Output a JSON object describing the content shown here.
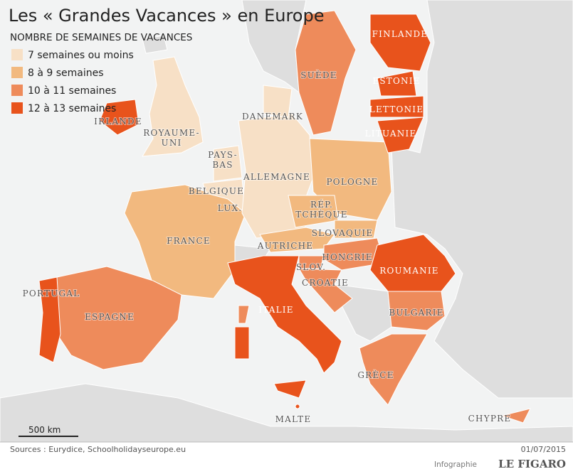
{
  "title": "Les « Grandes Vacances » en Europe",
  "legend": {
    "title": "NOMBRE DE SEMAINES DE VACANCES",
    "items": [
      {
        "label": "7 semaines ou moins",
        "color": "#f7e0c6"
      },
      {
        "label": "8 à  9 semaines",
        "color": "#f2b97f"
      },
      {
        "label": "10 à 11 semaines",
        "color": "#ee8b5b"
      },
      {
        "label": "12 à 13 semaines",
        "color": "#e8531c"
      }
    ]
  },
  "countries": [
    {
      "label": [
        "FINLANDE"
      ]
    },
    {
      "label": [
        "SUÈDE"
      ]
    },
    {
      "label": [
        "ESTONIE"
      ]
    },
    {
      "label": [
        "LETTONIE"
      ]
    },
    {
      "label": [
        "LITUANIE"
      ]
    },
    {
      "label": [
        "IRLANDE"
      ]
    },
    {
      "label": [
        "DANEMARK"
      ]
    },
    {
      "label": [
        "ROYAUME-",
        "UNI"
      ]
    },
    {
      "label": [
        "PAYS-",
        "BAS"
      ]
    },
    {
      "label": [
        "ALLEMAGNE"
      ]
    },
    {
      "label": [
        "POLOGNE"
      ]
    },
    {
      "label": [
        "BELGIQUE"
      ]
    },
    {
      "label": [
        "LUX."
      ]
    },
    {
      "label": [
        "RÉP.",
        "TCHÈQUE"
      ]
    },
    {
      "label": [
        "FRANCE"
      ]
    },
    {
      "label": [
        "SLOVAQUIE"
      ]
    },
    {
      "label": [
        "AUTRICHE"
      ]
    },
    {
      "label": [
        "HONGRIE"
      ]
    },
    {
      "label": [
        "SLOV."
      ]
    },
    {
      "label": [
        "ROUMANIE"
      ]
    },
    {
      "label": [
        "CROATIE"
      ]
    },
    {
      "label": [
        "PORTUGAL"
      ]
    },
    {
      "label": [
        "ITALIE"
      ]
    },
    {
      "label": [
        "BULGARIE"
      ]
    },
    {
      "label": [
        "ESPAGNE"
      ]
    },
    {
      "label": [
        "GRÈCE"
      ]
    },
    {
      "label": [
        "MALTE"
      ]
    },
    {
      "label": [
        "CHYPRE"
      ]
    }
  ],
  "scale": "500 km",
  "source": "Sources : Eurydice, Schoolholidayseurope.eu",
  "date": "01/07/2015",
  "credit": {
    "prefix": "Infographie",
    "brand": "LE FIGARO"
  }
}
